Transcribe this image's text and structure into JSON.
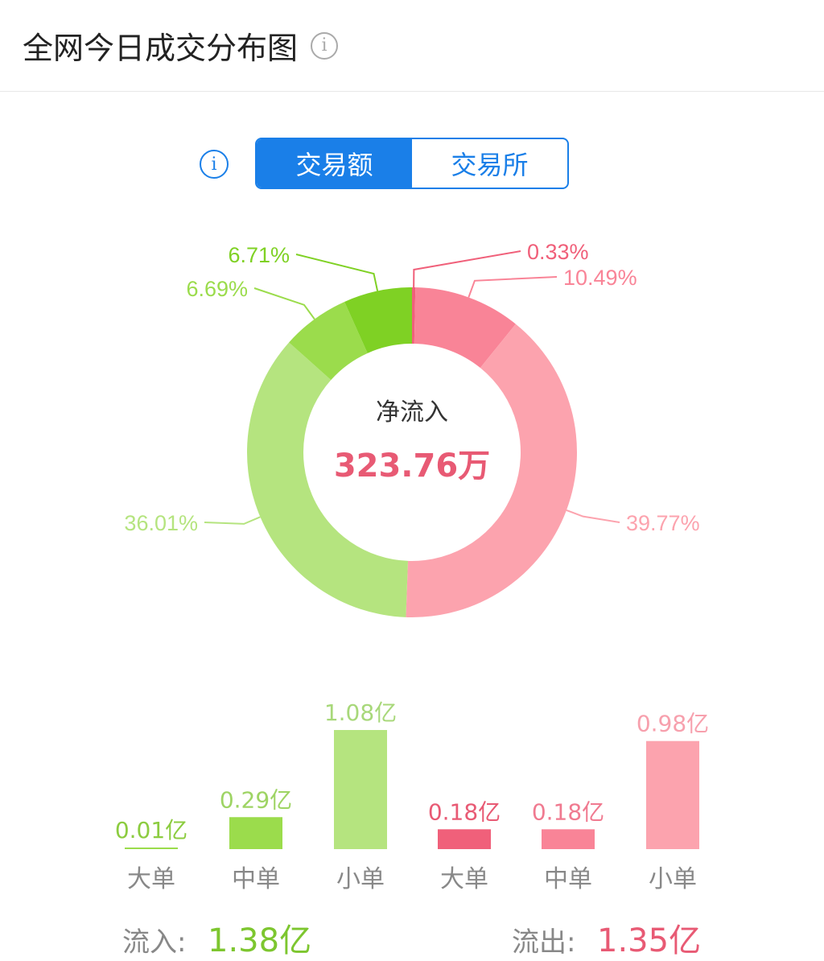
{
  "header": {
    "title": "全网今日成交分布图",
    "info_icon": "info-icon"
  },
  "tabs": [
    {
      "label": "交易额",
      "active": true
    },
    {
      "label": "交易所",
      "active": false
    }
  ],
  "colors": {
    "accent": "#1a7fe8",
    "in": "#7dc62f",
    "out": "#e85a74"
  },
  "chart_data": [
    {
      "type": "pie",
      "donut": true,
      "center_label": "净流入",
      "center_value": "323.76万",
      "slices": [
        {
          "label": "0.33%",
          "value": 0.33,
          "color": "#f0607a"
        },
        {
          "label": "10.49%",
          "value": 10.49,
          "color": "#f98497"
        },
        {
          "label": "39.77%",
          "value": 39.77,
          "color": "#fca3ae"
        },
        {
          "label": "36.01%",
          "value": 36.01,
          "color": "#b5e47f"
        },
        {
          "label": "6.69%",
          "value": 6.69,
          "color": "#9bdc4c"
        },
        {
          "label": "6.71%",
          "value": 6.71,
          "color": "#7fd124"
        }
      ]
    },
    {
      "type": "bar",
      "unit": "亿",
      "categories": [
        "大单",
        "中单",
        "小单",
        "大单",
        "中单",
        "小单"
      ],
      "values": [
        0.01,
        0.29,
        1.08,
        0.18,
        0.18,
        0.98
      ],
      "labels": [
        "0.01亿",
        "0.29亿",
        "1.08亿",
        "0.18亿",
        "0.18亿",
        "0.98亿"
      ],
      "colors": [
        "#9bdc4c",
        "#9bdc4c",
        "#b5e47f",
        "#f0607a",
        "#f98497",
        "#fca3ae"
      ],
      "label_colors": [
        "#8ccc40",
        "#9ed464",
        "#a8d87a",
        "#e85a74",
        "#f07a90",
        "#f7a0ad"
      ]
    }
  ],
  "summary": {
    "in_label": "流入:",
    "in_value": "1.38亿",
    "out_label": "流出:",
    "out_value": "1.35亿"
  }
}
